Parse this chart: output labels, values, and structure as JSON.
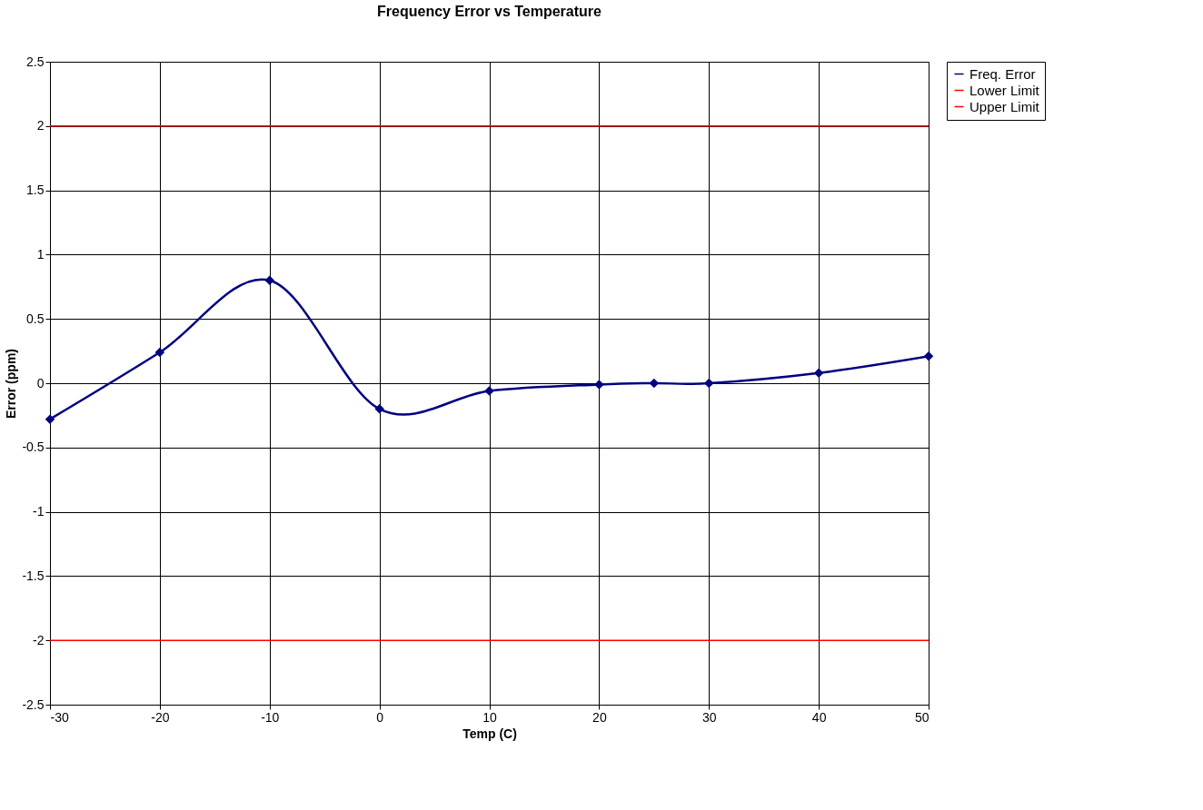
{
  "chart_data": {
    "type": "line",
    "title": "Frequency Error vs Temperature",
    "xlabel": "Temp (C)",
    "ylabel": "Error (ppm)",
    "x": [
      -30,
      -20,
      -10,
      0,
      10,
      20,
      25,
      30,
      40,
      50
    ],
    "series": [
      {
        "name": "Freq. Error",
        "color": "#000080",
        "values": [
          -0.28,
          0.24,
          0.8,
          -0.2,
          -0.06,
          -0.01,
          0.0,
          0.0,
          0.08,
          0.21
        ],
        "marker": "diamond"
      },
      {
        "name": "Lower Limit",
        "color": "#ff0000",
        "values": [
          -2,
          -2,
          -2,
          -2,
          -2,
          -2,
          -2,
          -2,
          -2,
          -2
        ],
        "marker": "none"
      },
      {
        "name": "Upper Limit",
        "color": "#ff0000",
        "values": [
          2,
          2,
          2,
          2,
          2,
          2,
          2,
          2,
          2,
          2
        ],
        "marker": "none"
      }
    ],
    "xlim": [
      -30,
      50
    ],
    "xticks": [
      -30,
      -20,
      -10,
      0,
      10,
      20,
      30,
      40,
      50
    ],
    "ylim": [
      -2.5,
      2.5
    ],
    "yticks": [
      -2.5,
      -2,
      -1.5,
      -1,
      -0.5,
      0,
      0.5,
      1,
      1.5,
      2,
      2.5
    ],
    "grid": true,
    "legend": "right",
    "line_style": "solid"
  }
}
